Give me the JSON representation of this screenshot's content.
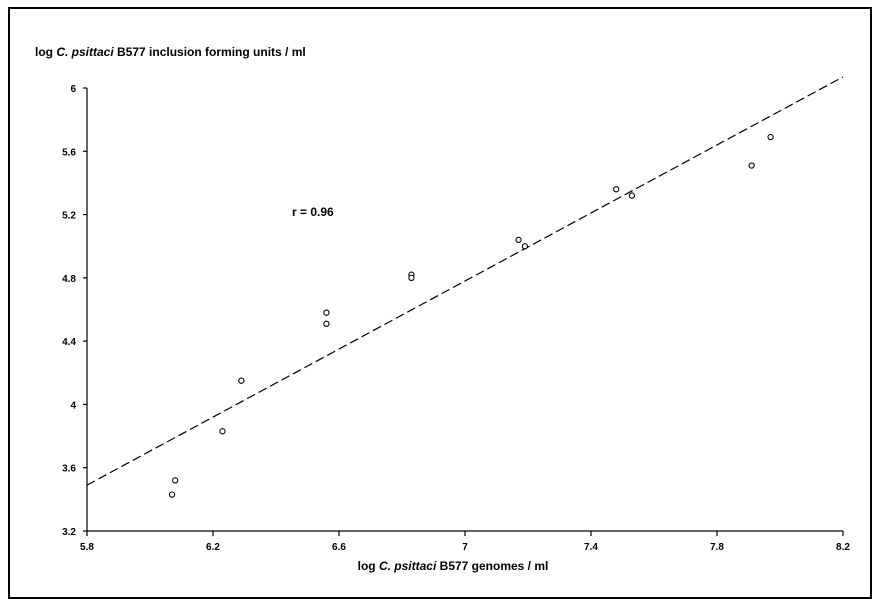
{
  "chart_data": {
    "type": "scatter",
    "ylabel_parts": [
      "log ",
      "C. psittaci",
      " B577 inclusion forming units / ml"
    ],
    "xlabel_parts": [
      "log ",
      "C. psittaci",
      " B577 genomes / ml"
    ],
    "annotation": "r = 0.96",
    "xlim": [
      5.8,
      8.2
    ],
    "ylim": [
      3.2,
      6.0
    ],
    "x_ticks": [
      5.8,
      6.2,
      6.6,
      7.0,
      7.4,
      7.8,
      8.2
    ],
    "x_tick_labels": [
      "5.8",
      "6.2",
      "6.6",
      "7",
      "7.4",
      "7.8",
      "8.2"
    ],
    "y_ticks": [
      3.2,
      3.6,
      4.0,
      4.4,
      4.8,
      5.2,
      5.6,
      6.0
    ],
    "y_tick_labels": [
      "3.2",
      "3.6",
      "4",
      "4.4",
      "4.8",
      "5.2",
      "5.6",
      "6"
    ],
    "points": [
      {
        "x": 6.07,
        "y": 3.43
      },
      {
        "x": 6.08,
        "y": 3.52
      },
      {
        "x": 6.23,
        "y": 3.83
      },
      {
        "x": 6.29,
        "y": 4.15
      },
      {
        "x": 6.56,
        "y": 4.58
      },
      {
        "x": 6.56,
        "y": 4.51
      },
      {
        "x": 6.83,
        "y": 4.82
      },
      {
        "x": 6.83,
        "y": 4.8
      },
      {
        "x": 7.17,
        "y": 5.04
      },
      {
        "x": 7.19,
        "y": 5.0
      },
      {
        "x": 7.48,
        "y": 5.36
      },
      {
        "x": 7.53,
        "y": 5.32
      },
      {
        "x": 7.91,
        "y": 5.51
      },
      {
        "x": 7.97,
        "y": 5.69
      }
    ],
    "fit_line": {
      "style": "dashed",
      "x": [
        5.8,
        8.2
      ],
      "y": [
        3.49,
        6.07
      ]
    },
    "grid": false,
    "legend": "none"
  }
}
